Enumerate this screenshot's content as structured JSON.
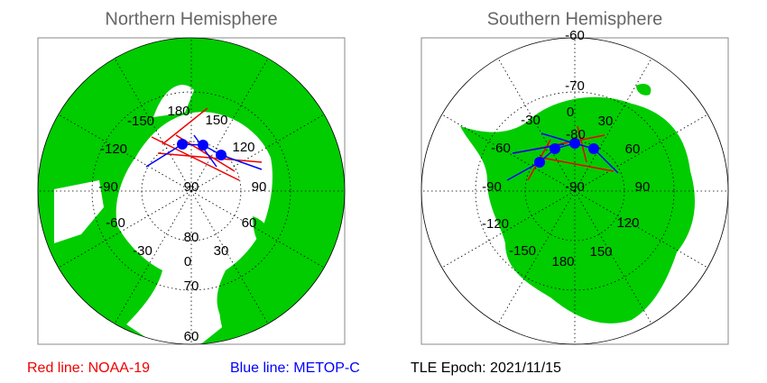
{
  "panels": [
    {
      "title": "Northern Hemisphere",
      "labels": [
        "180",
        "-150",
        "150",
        "-120",
        "120",
        "-90",
        "90",
        "90",
        "-60",
        "60",
        "80",
        "-30",
        "30",
        "0",
        "70",
        "60"
      ]
    },
    {
      "title": "Southern Hemisphere",
      "labels": [
        "-60",
        "-70",
        "0",
        "-30",
        "30",
        "-80",
        "-60",
        "60",
        "-90",
        "-90",
        "90",
        "-120",
        "120",
        "-150",
        "180",
        "150"
      ]
    }
  ],
  "legend": {
    "red": "Red line: NOAA-19",
    "blue": "Blue line: METOP-C",
    "epoch": "TLE Epoch: 2021/11/15"
  }
}
